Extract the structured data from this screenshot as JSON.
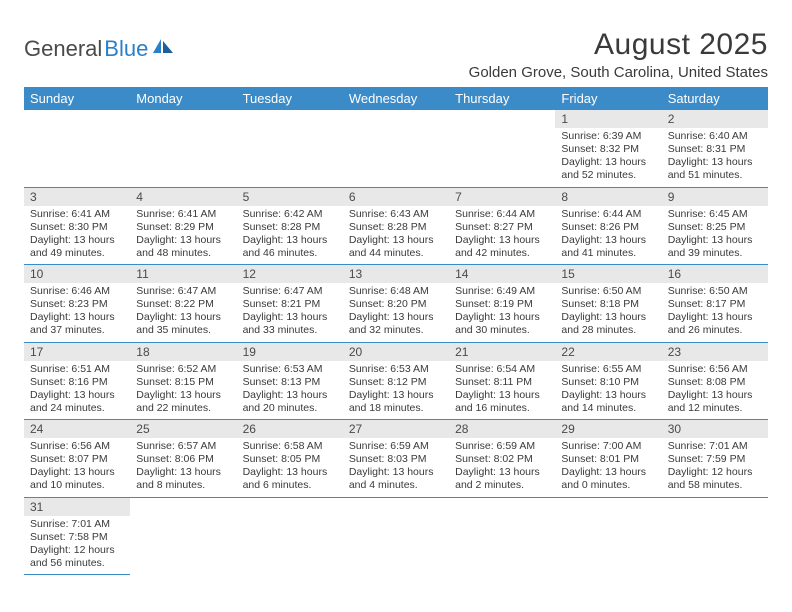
{
  "logo": {
    "text1": "General",
    "text2": "Blue"
  },
  "title": "August 2025",
  "location": "Golden Grove, South Carolina, United States",
  "colors": {
    "header_bg": "#3b8bc9",
    "header_fg": "#ffffff",
    "daynum_bg": "#e8e8e8",
    "border": "#3b8bc9",
    "text": "#3a3a3a",
    "logo_gray": "#4a4a4a",
    "logo_blue": "#2a7fc9"
  },
  "weekdays": [
    "Sunday",
    "Monday",
    "Tuesday",
    "Wednesday",
    "Thursday",
    "Friday",
    "Saturday"
  ],
  "weeks": [
    [
      null,
      null,
      null,
      null,
      null,
      {
        "n": "1",
        "sr": "6:39 AM",
        "ss": "8:32 PM",
        "dl": "13 hours and 52 minutes."
      },
      {
        "n": "2",
        "sr": "6:40 AM",
        "ss": "8:31 PM",
        "dl": "13 hours and 51 minutes."
      }
    ],
    [
      {
        "n": "3",
        "sr": "6:41 AM",
        "ss": "8:30 PM",
        "dl": "13 hours and 49 minutes."
      },
      {
        "n": "4",
        "sr": "6:41 AM",
        "ss": "8:29 PM",
        "dl": "13 hours and 48 minutes."
      },
      {
        "n": "5",
        "sr": "6:42 AM",
        "ss": "8:28 PM",
        "dl": "13 hours and 46 minutes."
      },
      {
        "n": "6",
        "sr": "6:43 AM",
        "ss": "8:28 PM",
        "dl": "13 hours and 44 minutes."
      },
      {
        "n": "7",
        "sr": "6:44 AM",
        "ss": "8:27 PM",
        "dl": "13 hours and 42 minutes."
      },
      {
        "n": "8",
        "sr": "6:44 AM",
        "ss": "8:26 PM",
        "dl": "13 hours and 41 minutes."
      },
      {
        "n": "9",
        "sr": "6:45 AM",
        "ss": "8:25 PM",
        "dl": "13 hours and 39 minutes."
      }
    ],
    [
      {
        "n": "10",
        "sr": "6:46 AM",
        "ss": "8:23 PM",
        "dl": "13 hours and 37 minutes."
      },
      {
        "n": "11",
        "sr": "6:47 AM",
        "ss": "8:22 PM",
        "dl": "13 hours and 35 minutes."
      },
      {
        "n": "12",
        "sr": "6:47 AM",
        "ss": "8:21 PM",
        "dl": "13 hours and 33 minutes."
      },
      {
        "n": "13",
        "sr": "6:48 AM",
        "ss": "8:20 PM",
        "dl": "13 hours and 32 minutes."
      },
      {
        "n": "14",
        "sr": "6:49 AM",
        "ss": "8:19 PM",
        "dl": "13 hours and 30 minutes."
      },
      {
        "n": "15",
        "sr": "6:50 AM",
        "ss": "8:18 PM",
        "dl": "13 hours and 28 minutes."
      },
      {
        "n": "16",
        "sr": "6:50 AM",
        "ss": "8:17 PM",
        "dl": "13 hours and 26 minutes."
      }
    ],
    [
      {
        "n": "17",
        "sr": "6:51 AM",
        "ss": "8:16 PM",
        "dl": "13 hours and 24 minutes."
      },
      {
        "n": "18",
        "sr": "6:52 AM",
        "ss": "8:15 PM",
        "dl": "13 hours and 22 minutes."
      },
      {
        "n": "19",
        "sr": "6:53 AM",
        "ss": "8:13 PM",
        "dl": "13 hours and 20 minutes."
      },
      {
        "n": "20",
        "sr": "6:53 AM",
        "ss": "8:12 PM",
        "dl": "13 hours and 18 minutes."
      },
      {
        "n": "21",
        "sr": "6:54 AM",
        "ss": "8:11 PM",
        "dl": "13 hours and 16 minutes."
      },
      {
        "n": "22",
        "sr": "6:55 AM",
        "ss": "8:10 PM",
        "dl": "13 hours and 14 minutes."
      },
      {
        "n": "23",
        "sr": "6:56 AM",
        "ss": "8:08 PM",
        "dl": "13 hours and 12 minutes."
      }
    ],
    [
      {
        "n": "24",
        "sr": "6:56 AM",
        "ss": "8:07 PM",
        "dl": "13 hours and 10 minutes."
      },
      {
        "n": "25",
        "sr": "6:57 AM",
        "ss": "8:06 PM",
        "dl": "13 hours and 8 minutes."
      },
      {
        "n": "26",
        "sr": "6:58 AM",
        "ss": "8:05 PM",
        "dl": "13 hours and 6 minutes."
      },
      {
        "n": "27",
        "sr": "6:59 AM",
        "ss": "8:03 PM",
        "dl": "13 hours and 4 minutes."
      },
      {
        "n": "28",
        "sr": "6:59 AM",
        "ss": "8:02 PM",
        "dl": "13 hours and 2 minutes."
      },
      {
        "n": "29",
        "sr": "7:00 AM",
        "ss": "8:01 PM",
        "dl": "13 hours and 0 minutes."
      },
      {
        "n": "30",
        "sr": "7:01 AM",
        "ss": "7:59 PM",
        "dl": "12 hours and 58 minutes."
      }
    ],
    [
      {
        "n": "31",
        "sr": "7:01 AM",
        "ss": "7:58 PM",
        "dl": "12 hours and 56 minutes."
      },
      null,
      null,
      null,
      null,
      null,
      null
    ]
  ],
  "labels": {
    "sunrise": "Sunrise:",
    "sunset": "Sunset:",
    "daylight": "Daylight:"
  }
}
